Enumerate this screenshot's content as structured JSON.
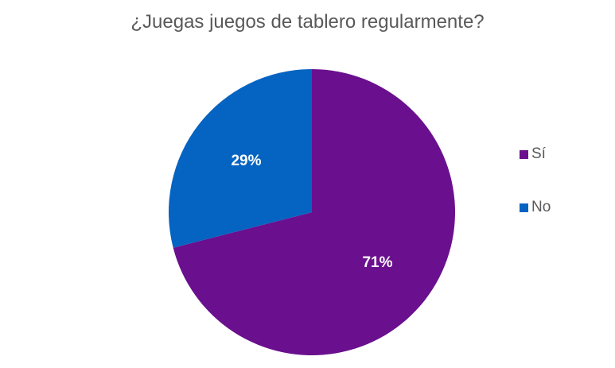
{
  "chart_data": {
    "type": "pie",
    "title": "¿Juegas juegos de tablero regularmente?",
    "categories": [
      "Sí",
      "No"
    ],
    "values": [
      71,
      29
    ],
    "value_labels": [
      "71%",
      "29%"
    ],
    "colors": [
      "#6a0f8e",
      "#0563c1"
    ],
    "start_angle_deg": 0,
    "direction": "clockwise",
    "legend_position": "right"
  }
}
